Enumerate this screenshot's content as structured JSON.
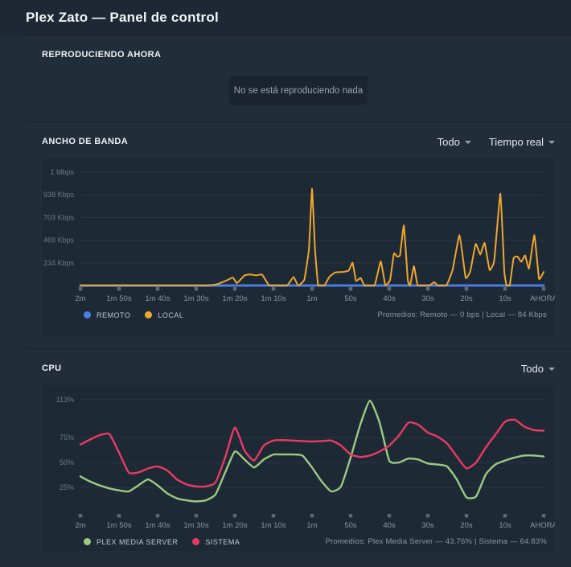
{
  "header": {
    "title": "Plex Zato — Panel de control"
  },
  "now_playing": {
    "section_title": "REPRODUCIENDO AHORA",
    "empty_message": "No se está reproduciendo nada"
  },
  "filters": {
    "bandwidth": [
      {
        "label": "Todo"
      },
      {
        "label": "Tiempo real"
      }
    ],
    "cpu": [
      {
        "label": "Todo"
      }
    ]
  },
  "chart_data": [
    {
      "id": "bandwidth",
      "type": "line",
      "title": "ANCHO DE BANDA",
      "averages": "Promedios: Remoto — 0 bps | Local — 84 Kbps",
      "x_axis": {
        "ticks": [
          "2m",
          "1m 50s",
          "1m 40s",
          "1m 30s",
          "1m 20s",
          "1m 10s",
          "1m",
          "50s",
          "40s",
          "30s",
          "20s",
          "10s",
          "AHORA"
        ],
        "seconds_span": 120
      },
      "y_axis": {
        "unit": "Kbps",
        "gridlines": [
          {
            "label": "1 Mbps",
            "value": 1172
          },
          {
            "label": "938 Kbps",
            "value": 938
          },
          {
            "label": "703 Kbps",
            "value": 703
          },
          {
            "label": "469 Kbps",
            "value": 469
          },
          {
            "label": "234 Kbps",
            "value": 234
          }
        ]
      },
      "series": [
        {
          "name": "REMOTO",
          "color": "#4c7de2",
          "line_width": 3,
          "tension": 0,
          "points": [
            [
              120,
              0
            ],
            [
              0,
              0
            ]
          ]
        },
        {
          "name": "LOCAL",
          "color": "#efa72e",
          "line_width": 2,
          "tension": 0.35,
          "points": [
            [
              120,
              0
            ],
            [
              88,
              0
            ],
            [
              84.5,
              15
            ],
            [
              82,
              55
            ],
            [
              80.5,
              82
            ],
            [
              79.5,
              25
            ],
            [
              78.5,
              62
            ],
            [
              77.5,
              105
            ],
            [
              76,
              115
            ],
            [
              74.5,
              105
            ],
            [
              73,
              115
            ],
            [
              72,
              55
            ],
            [
              71,
              0
            ],
            [
              66.5,
              0
            ],
            [
              64.8,
              88
            ],
            [
              63.6,
              0
            ],
            [
              62,
              60
            ],
            [
              60.8,
              380
            ],
            [
              60,
              1000
            ],
            [
              59.2,
              360
            ],
            [
              58.4,
              0
            ],
            [
              56.8,
              0
            ],
            [
              55.5,
              90
            ],
            [
              54,
              135
            ],
            [
              52,
              140
            ],
            [
              50.5,
              155
            ],
            [
              49.5,
              235
            ],
            [
              48.6,
              50
            ],
            [
              47.4,
              78
            ],
            [
              46.4,
              0
            ],
            [
              43.8,
              0
            ],
            [
              42.2,
              250
            ],
            [
              41,
              0
            ],
            [
              39.8,
              55
            ],
            [
              38.8,
              330
            ],
            [
              38,
              300
            ],
            [
              37.2,
              315
            ],
            [
              36.2,
              620
            ],
            [
              35.2,
              60
            ],
            [
              34.6,
              0
            ],
            [
              33.6,
              200
            ],
            [
              32.6,
              0
            ],
            [
              29.6,
              0
            ],
            [
              28.4,
              35
            ],
            [
              27.4,
              0
            ],
            [
              25.2,
              0
            ],
            [
              23.6,
              160
            ],
            [
              21.8,
              520
            ],
            [
              20.2,
              80
            ],
            [
              19,
              150
            ],
            [
              17.6,
              430
            ],
            [
              16.4,
              320
            ],
            [
              15.3,
              440
            ],
            [
              14,
              160
            ],
            [
              12.8,
              260
            ],
            [
              11.2,
              950
            ],
            [
              10.2,
              150
            ],
            [
              9.6,
              0
            ],
            [
              8.8,
              0
            ],
            [
              7.8,
              280
            ],
            [
              6.8,
              300
            ],
            [
              5.8,
              245
            ],
            [
              4.8,
              310
            ],
            [
              3.8,
              175
            ],
            [
              2.4,
              520
            ],
            [
              1.2,
              70
            ],
            [
              0,
              140
            ]
          ]
        }
      ]
    },
    {
      "id": "cpu",
      "type": "line",
      "title": "CPU",
      "averages": "Promedios: Plex Media Server — 43.76% | Sistema — 64.83%",
      "x_axis": {
        "ticks": [
          "2m",
          "1m 50s",
          "1m 40s",
          "1m 30s",
          "1m 20s",
          "1m 10s",
          "1m",
          "50s",
          "40s",
          "30s",
          "20s",
          "10s",
          "AHORA"
        ],
        "seconds_span": 120
      },
      "y_axis": {
        "unit": "%",
        "gridlines": [
          {
            "label": "113%",
            "value": 113
          },
          {
            "label": "75%",
            "value": 75
          },
          {
            "label": "50%",
            "value": 50
          },
          {
            "label": "25%",
            "value": 25
          }
        ]
      },
      "series": [
        {
          "name": "PLEX MEDIA SERVER",
          "color": "#9cca83",
          "line_width": 2.4,
          "tension": 0.55,
          "points": [
            [
              120,
              36
            ],
            [
              117.5,
              31
            ],
            [
              115,
              27
            ],
            [
              112.5,
              24
            ],
            [
              110,
              22
            ],
            [
              107.5,
              21
            ],
            [
              105,
              27
            ],
            [
              102.5,
              33
            ],
            [
              100,
              27
            ],
            [
              97.5,
              19
            ],
            [
              95,
              14
            ],
            [
              92.5,
              12
            ],
            [
              90,
              11
            ],
            [
              87.5,
              12
            ],
            [
              85,
              18
            ],
            [
              82.5,
              40
            ],
            [
              80,
              61
            ],
            [
              77.5,
              53
            ],
            [
              75,
              45
            ],
            [
              72.5,
              53
            ],
            [
              70,
              58
            ],
            [
              67.5,
              58
            ],
            [
              65,
              58
            ],
            [
              62.5,
              57
            ],
            [
              60,
              45
            ],
            [
              57.5,
              31
            ],
            [
              55,
              21
            ],
            [
              52.5,
              26
            ],
            [
              50,
              55
            ],
            [
              47.5,
              88
            ],
            [
              45,
              112
            ],
            [
              42.5,
              90
            ],
            [
              40,
              52
            ],
            [
              37.5,
              50
            ],
            [
              35,
              54
            ],
            [
              32.5,
              53
            ],
            [
              30,
              49
            ],
            [
              27.5,
              48
            ],
            [
              25,
              46
            ],
            [
              22.5,
              33
            ],
            [
              20,
              15
            ],
            [
              17.5,
              16
            ],
            [
              15,
              38
            ],
            [
              12.5,
              48
            ],
            [
              10,
              52
            ],
            [
              7.5,
              55
            ],
            [
              5,
              57
            ],
            [
              2.5,
              57
            ],
            [
              0,
              56
            ]
          ]
        },
        {
          "name": "SISTEMA",
          "color": "#e93a63",
          "line_width": 2.4,
          "tension": 0.55,
          "points": [
            [
              120,
              68
            ],
            [
              117.5,
              73
            ],
            [
              115,
              77.5
            ],
            [
              112.5,
              78.5
            ],
            [
              110,
              60
            ],
            [
              107.5,
              40
            ],
            [
              105,
              40
            ],
            [
              102.5,
              44
            ],
            [
              100,
              46
            ],
            [
              97.5,
              42
            ],
            [
              95,
              33
            ],
            [
              92.5,
              28
            ],
            [
              90,
              26
            ],
            [
              87.5,
              26
            ],
            [
              85,
              30
            ],
            [
              82.5,
              55
            ],
            [
              80,
              85
            ],
            [
              77.5,
              62
            ],
            [
              75,
              52
            ],
            [
              72.5,
              67
            ],
            [
              70,
              72
            ],
            [
              67.5,
              72.5
            ],
            [
              65,
              72
            ],
            [
              62.5,
              71.5
            ],
            [
              60,
              71
            ],
            [
              57.5,
              71.5
            ],
            [
              55,
              72
            ],
            [
              52.5,
              67
            ],
            [
              50,
              58
            ],
            [
              47.5,
              55.5
            ],
            [
              45,
              57
            ],
            [
              42.5,
              61
            ],
            [
              40,
              67
            ],
            [
              37.5,
              77
            ],
            [
              35,
              90
            ],
            [
              32.5,
              88
            ],
            [
              30,
              80
            ],
            [
              27.5,
              76
            ],
            [
              25,
              69
            ],
            [
              22.5,
              56
            ],
            [
              20,
              44
            ],
            [
              17.5,
              50
            ],
            [
              15,
              65
            ],
            [
              12.5,
              78
            ],
            [
              10,
              91
            ],
            [
              7.5,
              93
            ],
            [
              5,
              86
            ],
            [
              2.5,
              82.5
            ],
            [
              0,
              82
            ]
          ]
        }
      ]
    }
  ]
}
